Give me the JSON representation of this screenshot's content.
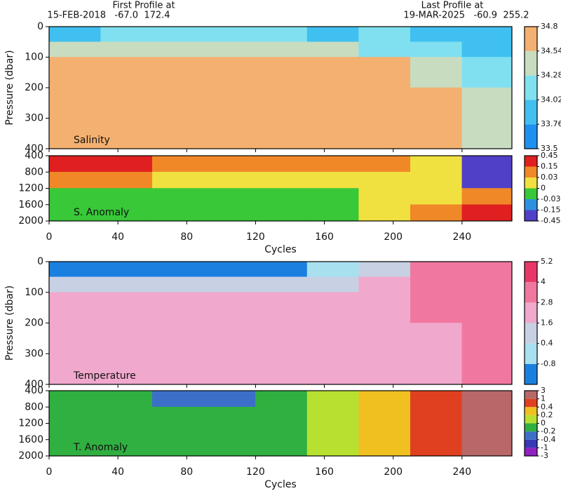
{
  "header": {
    "first_label": "First Profile at",
    "first_info": "15-FEB-2018   -67.0  172.4",
    "last_label": "Last Profile at",
    "last_info": "19-MAR-2025   -60.9  255.2"
  },
  "chart_data": [
    {
      "type": "heatmap",
      "label": "Salinity",
      "ylabel": "Pressure (dbar)",
      "xlim": [
        0,
        269
      ],
      "xticks": [
        0,
        40,
        80,
        120,
        160,
        200,
        240
      ],
      "ylim": [
        0,
        400
      ],
      "yticks": [
        0,
        100,
        200,
        300,
        400
      ],
      "x_edges": [
        0,
        30,
        60,
        90,
        120,
        150,
        180,
        210,
        240,
        269
      ],
      "y_edges": [
        0,
        50,
        100,
        200,
        400
      ],
      "values": [
        [
          34.0,
          34.05,
          34.1,
          34.1,
          34.1,
          34.0,
          34.1,
          33.9,
          33.8
        ],
        [
          34.4,
          34.3,
          34.3,
          34.35,
          34.3,
          34.3,
          34.2,
          34.05,
          34.0
        ],
        [
          34.65,
          34.65,
          34.65,
          34.62,
          34.62,
          34.6,
          34.55,
          34.3,
          34.2
        ],
        [
          34.7,
          34.7,
          34.7,
          34.7,
          34.7,
          34.7,
          34.68,
          34.6,
          34.3
        ]
      ],
      "levels": [
        33.5,
        33.76,
        34.02,
        34.28,
        34.54,
        34.8
      ],
      "colors": [
        "#1e90f0",
        "#40c0f0",
        "#80e0f0",
        "#c8dcc0",
        "#f4b070"
      ]
    },
    {
      "type": "heatmap",
      "label": "S. Anomaly",
      "xlabel": "Cycles",
      "xlim": [
        0,
        269
      ],
      "xticks": [
        0,
        40,
        80,
        120,
        160,
        200,
        240
      ],
      "ylim": [
        400,
        2000
      ],
      "yticks": [
        400,
        800,
        1200,
        1600,
        2000
      ],
      "x_edges": [
        0,
        30,
        60,
        90,
        120,
        150,
        180,
        210,
        240,
        269
      ],
      "y_edges": [
        400,
        800,
        1200,
        1600,
        2000
      ],
      "values": [
        [
          0.2,
          0.2,
          0.12,
          0.1,
          0.08,
          0.1,
          0.05,
          0.02,
          -0.2
        ],
        [
          0.03,
          0.03,
          0.02,
          0.02,
          0.02,
          0.02,
          0.02,
          0.01,
          -0.2
        ],
        [
          -0.01,
          -0.01,
          -0.01,
          -0.01,
          -0.01,
          -0.01,
          0.01,
          0.02,
          0.1
        ],
        [
          -0.02,
          -0.02,
          -0.02,
          -0.02,
          -0.02,
          -0.01,
          0.01,
          0.03,
          0.2
        ]
      ],
      "levels": [
        -0.45,
        -0.15,
        -0.03,
        0,
        0.03,
        0.15,
        0.45
      ],
      "colors": [
        "#5040c8",
        "#3090e0",
        "#38c838",
        "#f0e040",
        "#f08828",
        "#e02020"
      ]
    },
    {
      "type": "heatmap",
      "label": "Temperature",
      "ylabel": "Pressure (dbar)",
      "xlim": [
        0,
        269
      ],
      "xticks": [
        0,
        40,
        80,
        120,
        160,
        200,
        240
      ],
      "ylim": [
        0,
        400
      ],
      "yticks": [
        0,
        100,
        200,
        300,
        400
      ],
      "x_edges": [
        0,
        30,
        60,
        90,
        120,
        150,
        180,
        210,
        240,
        269
      ],
      "y_edges": [
        0,
        50,
        100,
        200,
        400
      ],
      "values": [
        [
          -1.2,
          -1.2,
          -1.2,
          -1.2,
          -1.2,
          -0.5,
          1.5,
          3,
          3.5
        ],
        [
          0.8,
          0.5,
          0.5,
          0.6,
          0.5,
          0.5,
          1.8,
          3,
          3.5
        ],
        [
          1.8,
          1.8,
          1.7,
          1.8,
          1.8,
          1.8,
          2,
          2.9,
          3.2
        ],
        [
          1.8,
          1.8,
          1.8,
          1.8,
          1.8,
          1.8,
          2,
          2.5,
          2.9
        ]
      ],
      "levels": [
        -0.8,
        0.4,
        1.6,
        2.8,
        4,
        5.2
      ],
      "colors": [
        "#1a80e0",
        "#a8e0f0",
        "#c8d0e4",
        "#f0a8cc",
        "#f078a0",
        "#e83868"
      ]
    },
    {
      "type": "heatmap",
      "label": "T. Anomaly",
      "xlabel": "Cycles",
      "xlim": [
        0,
        269
      ],
      "xticks": [
        0,
        40,
        80,
        120,
        160,
        200,
        240
      ],
      "ylim": [
        400,
        2000
      ],
      "yticks": [
        400,
        800,
        1200,
        1600,
        2000
      ],
      "x_edges": [
        0,
        30,
        60,
        90,
        120,
        150,
        180,
        210,
        240,
        269
      ],
      "y_edges": [
        400,
        800,
        1200,
        1600,
        2000
      ],
      "values": [
        [
          -0.1,
          -0.1,
          -0.3,
          -0.3,
          -0.1,
          0.1,
          0.3,
          0.6,
          1.5
        ],
        [
          -0.1,
          -0.1,
          -0.1,
          -0.1,
          -0.1,
          0.1,
          0.3,
          0.6,
          1.5
        ],
        [
          -0.1,
          -0.1,
          -0.1,
          -0.1,
          -0.1,
          0.1,
          0.3,
          0.6,
          1.5
        ],
        [
          -0.1,
          -0.1,
          -0.1,
          -0.1,
          -0.1,
          0.1,
          0.3,
          0.6,
          1.5
        ]
      ],
      "levels": [
        -3,
        -1,
        -0.4,
        -0.2,
        0,
        0.2,
        0.4,
        1,
        3
      ],
      "colors": [
        "#9020c0",
        "#3838b8",
        "#3c70c8",
        "#30b040",
        "#b8e030",
        "#f0c020",
        "#e04020",
        "#b86868"
      ]
    }
  ]
}
